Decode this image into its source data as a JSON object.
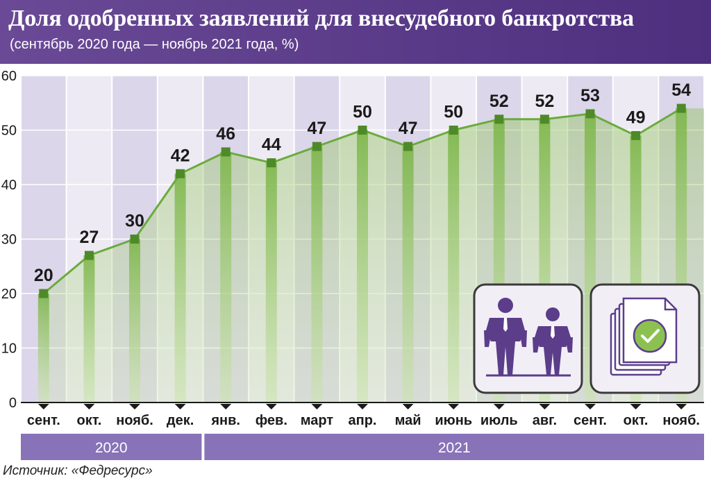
{
  "title": "Доля одобренных заявлений для внесудебного банкротства",
  "subtitle": "(сентябрь 2020 года — ноябрь 2021 года, %)",
  "source": "Источник: «Федресурс»",
  "colors": {
    "header": "#5b3d8a",
    "line": "#6aab3c",
    "marker": "#4e8a28",
    "stripe_dark": "#dcd6ea",
    "stripe_light": "#edeaf3",
    "year_band": "#8872b8"
  },
  "icons": [
    "people-with-empty-pockets-icon",
    "approved-documents-icon"
  ],
  "chart_data": {
    "type": "line",
    "categories": [
      "сент.",
      "окт.",
      "нояб.",
      "дек.",
      "янв.",
      "фев.",
      "март",
      "апр.",
      "май",
      "июнь",
      "июль",
      "авг.",
      "сент.",
      "окт.",
      "нояб."
    ],
    "values": [
      20,
      27,
      30,
      42,
      46,
      44,
      47,
      50,
      47,
      50,
      52,
      52,
      53,
      49,
      54
    ],
    "data_labels": [
      "20",
      "27",
      "30",
      "42",
      "46",
      "44",
      "47",
      "50",
      "47",
      "50",
      "52",
      "52",
      "53",
      "49",
      "54"
    ],
    "year_groups": [
      {
        "label": "2020",
        "count": 4
      },
      {
        "label": "2021",
        "count": 11
      }
    ],
    "yticks": [
      "0",
      "10",
      "20",
      "30",
      "40",
      "50",
      "60"
    ],
    "ylim": [
      0,
      60
    ],
    "grid": true
  }
}
